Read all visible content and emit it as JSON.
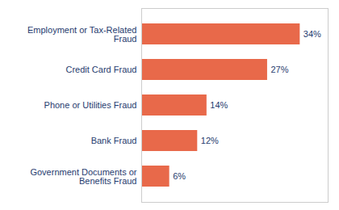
{
  "chart_data": {
    "type": "bar",
    "orientation": "horizontal",
    "categories": [
      "Government Documents or\nBenefits Fraud",
      "Bank Fraud",
      "Phone or Utilities Fraud",
      "Credit Card Fraud",
      "Employment or Tax-Related\nFraud"
    ],
    "values": [
      6,
      12,
      14,
      27,
      34
    ],
    "value_labels": [
      "6%",
      "12%",
      "14%",
      "27%",
      "34%"
    ],
    "data_labels": true,
    "color": "#E8694A",
    "xlim": [
      0,
      40
    ],
    "tick_labels": "y",
    "grid": false
  }
}
